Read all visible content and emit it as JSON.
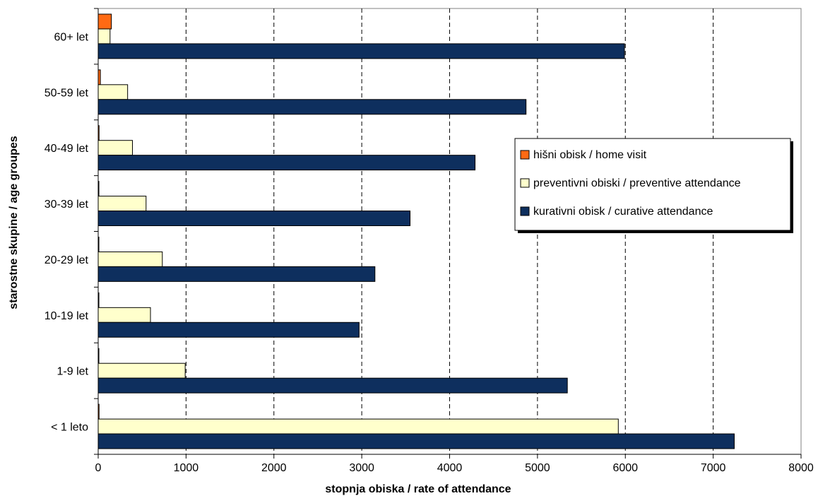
{
  "chart_data": {
    "type": "bar",
    "orientation": "horizontal",
    "categories": [
      "< 1 leto",
      "1-9 let",
      "10-19 let",
      "20-29 let",
      "30-39 let",
      "40-49 let",
      "50-59 let",
      "60+ let"
    ],
    "series": [
      {
        "name": "hišni obisk / home visit",
        "color": "#ff6a13",
        "values": [
          10,
          5,
          5,
          5,
          5,
          10,
          25,
          150
        ]
      },
      {
        "name": "preventivni obiski / preventive attendance",
        "color": "#ffffcc",
        "values": [
          5920,
          990,
          595,
          730,
          545,
          390,
          335,
          135
        ]
      },
      {
        "name": "kurativni obisk / curative attendance",
        "color": "#0e2f5e",
        "values": [
          7240,
          5340,
          2970,
          3150,
          3550,
          4290,
          4870,
          5990
        ]
      }
    ],
    "xlabel": "stopnja obiska / rate of attendance",
    "ylabel": "starostne skupine / age groupes",
    "xlim": [
      0,
      8000
    ],
    "xticks": [
      0,
      1000,
      2000,
      3000,
      4000,
      5000,
      6000,
      7000,
      8000
    ],
    "grid": "vertical dashed",
    "legend_placement": "right"
  }
}
